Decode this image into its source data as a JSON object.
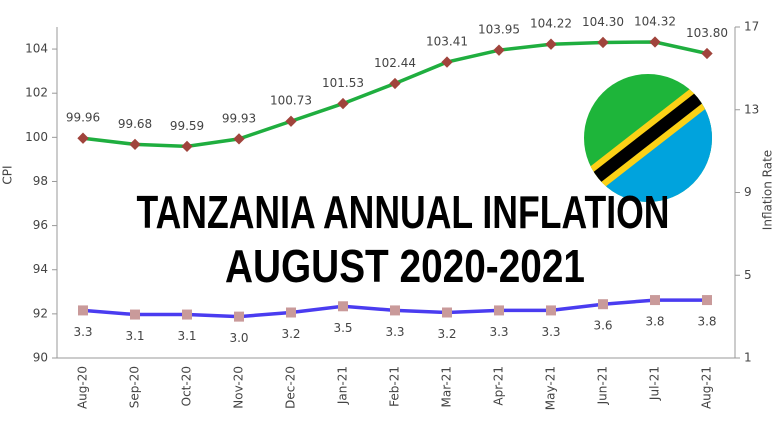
{
  "chart_data": {
    "type": "line",
    "title": "TANZANIA ANNUAL INFLATION",
    "subtitle": "AUGUST 2020-2021",
    "y_label": "CPI",
    "y2_label": "Inflation Rate",
    "categories": [
      "Aug-20",
      "Sep-20",
      "Oct-20",
      "Nov-20",
      "Dec-20",
      "Jan-21",
      "Feb-21",
      "Mar-21",
      "Apr-21",
      "May-21",
      "Jun-21",
      "Jul-21",
      "Aug-21"
    ],
    "series": [
      {
        "name": "CPI",
        "color": "#1fae3f",
        "marker_color": "#a0443c",
        "values": [
          99.96,
          99.68,
          99.59,
          99.93,
          100.73,
          101.53,
          102.44,
          103.41,
          103.95,
          104.22,
          104.3,
          104.32,
          103.8
        ],
        "value_labels": [
          "99.96",
          "99.68",
          "99.59",
          "99.93",
          "100.73",
          "101.53",
          "102.44",
          "103.41",
          "103.95",
          "104.22",
          "104.30",
          "104.32",
          "103.80"
        ]
      },
      {
        "name": "Inflation Rate",
        "color": "#4a3cf0",
        "marker_color": "#c99a9a",
        "axis": "y2",
        "values": [
          3.3,
          3.1,
          3.1,
          3.0,
          3.2,
          3.5,
          3.3,
          3.2,
          3.3,
          3.3,
          3.6,
          3.8,
          3.8
        ],
        "value_labels": [
          "3.3",
          "3.1",
          "3.1",
          "3.0",
          "3.2",
          "3.5",
          "3.3",
          "3.2",
          "3.3",
          "3.3",
          "3.6",
          "3.8",
          "3.8"
        ]
      }
    ],
    "ylim": [
      90,
      105
    ],
    "yticks": [
      90,
      92,
      94,
      96,
      98,
      100,
      102,
      104
    ],
    "y2lim": [
      1,
      17
    ],
    "y2ticks": [
      1,
      5,
      9,
      13,
      17
    ]
  }
}
